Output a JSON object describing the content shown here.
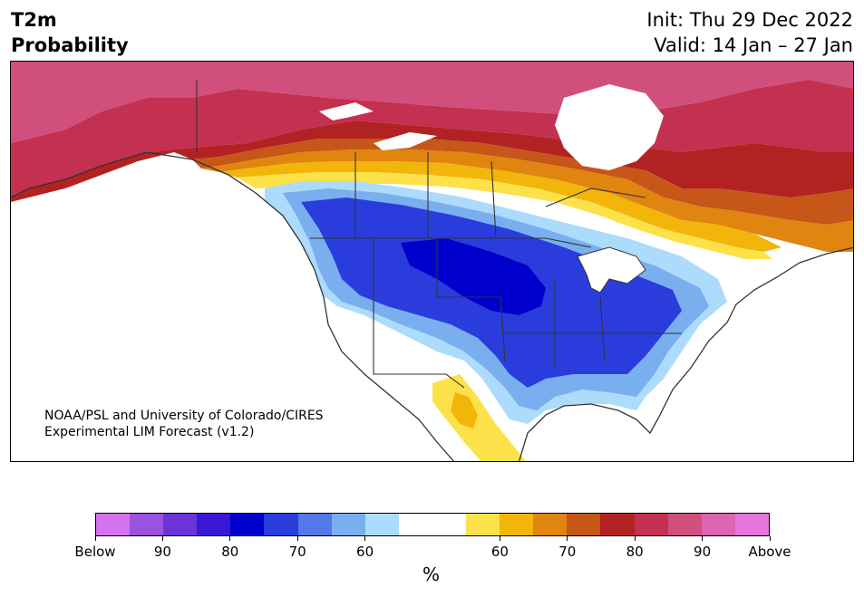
{
  "title": {
    "line1": "T2m",
    "line2": "Probability"
  },
  "header_right": {
    "init": "Init: Thu 29 Dec 2022",
    "valid": "Valid: 14 Jan – 27 Jan"
  },
  "credit": {
    "line1": "NOAA/PSL and University of Colorado/CIRES",
    "line2": "Experimental LIM Forecast (v1.2)"
  },
  "colorbar": {
    "unit": "%",
    "below_colors": [
      "#d672f0",
      "#9a52e0",
      "#6b34d8",
      "#3a18d6",
      "#0000cd",
      "#2a3ddc",
      "#5477ea",
      "#79afef",
      "#acdbfc"
    ],
    "neutral_color": "#ffffff",
    "above_colors": [
      "#fde14a",
      "#f2b50a",
      "#df8510",
      "#c65718",
      "#b22222",
      "#c4304f",
      "#d04f7d",
      "#dc64b2",
      "#e875dc"
    ],
    "tick_labels": [
      "Below",
      "90",
      "80",
      "70",
      "60",
      "60",
      "70",
      "80",
      "90",
      "Above"
    ]
  },
  "map": {
    "region": "North America",
    "colors": {
      "below_60": "#acdbfc",
      "below_70": "#79afef",
      "below_80": "#2a3ddc",
      "below_90": "#0000cd",
      "above_60": "#fde14a",
      "above_65": "#f2b50a",
      "above_70": "#df8510",
      "above_75": "#c65718",
      "above_80": "#b22222",
      "above_85": "#c4304f",
      "above_90": "#d04f7d",
      "water": "#ffffff",
      "border": "#333333"
    }
  }
}
